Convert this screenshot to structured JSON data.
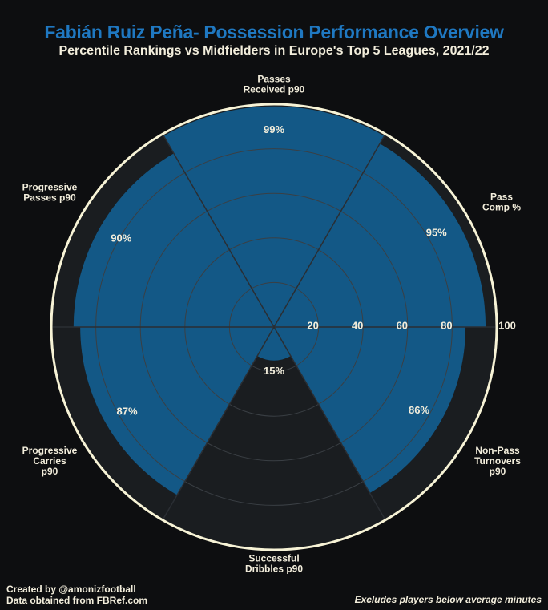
{
  "title": "Fabián Ruiz Peña- Possession Performance Overview",
  "subtitle": "Percentile Rankings vs Midfielders in Europe's Top 5 Leagues, 2021/22",
  "footer": {
    "credit": "Created by @amonizfootball",
    "source": "Data obtained from FBRef.com",
    "note": "Excludes players below average minutes"
  },
  "colors": {
    "background": "#0d0e10",
    "wedge_background": "#1a1d20",
    "bar": "#135886",
    "outer_ring": "#f7f3d6",
    "title": "#1f78c1",
    "text": "#f3eedc",
    "grid": "#3a3f44"
  },
  "chart_data": {
    "type": "polar-bar",
    "range": [
      0,
      100
    ],
    "radial_ticks": [
      "20",
      "40",
      "60",
      "80",
      "100"
    ],
    "categories": [
      {
        "label": [
          "Passes",
          "Received p90"
        ],
        "value": 99,
        "display": "99%"
      },
      {
        "label": [
          "Pass",
          "Comp %"
        ],
        "value": 95,
        "display": "95%"
      },
      {
        "label": [
          "Non-Pass",
          "Turnovers",
          "p90"
        ],
        "value": 86,
        "display": "86%"
      },
      {
        "label": [
          "Successful",
          "Dribbles p90"
        ],
        "value": 15,
        "display": "15%"
      },
      {
        "label": [
          "Progressive",
          "Carries",
          "p90"
        ],
        "value": 87,
        "display": "87%"
      },
      {
        "label": [
          "Progressive",
          "Passes p90"
        ],
        "value": 90,
        "display": "90%"
      }
    ]
  }
}
